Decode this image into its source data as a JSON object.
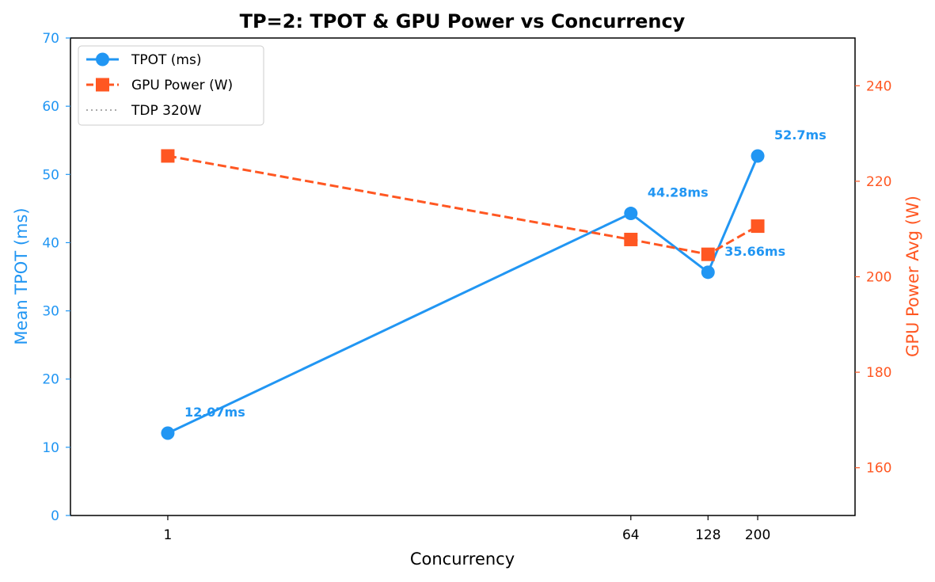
{
  "colors": {
    "tpot": "#2196f3",
    "power": "#ff5722",
    "tdp": "#aaaaaa",
    "axis": "#000000"
  },
  "chart_data": {
    "type": "line",
    "title": "TP=2: TPOT & GPU Power vs Concurrency",
    "xlabel": "Concurrency",
    "x_scale": "log",
    "x": [
      1,
      64,
      128,
      200
    ],
    "x_tick_labels": [
      "1",
      "64",
      "128",
      "200"
    ],
    "y_left": {
      "label": "Mean TPOT (ms)",
      "range": [
        0,
        70
      ],
      "ticks": [
        0,
        10,
        20,
        30,
        40,
        50,
        60,
        70
      ],
      "tick_labels": [
        "0",
        "10",
        "20",
        "30",
        "40",
        "50",
        "60",
        "70"
      ]
    },
    "y_right": {
      "label": "GPU Power Avg (W)",
      "range": [
        150,
        250
      ],
      "ticks": [
        160,
        180,
        200,
        220,
        240
      ],
      "tick_labels": [
        "160",
        "180",
        "200",
        "220",
        "240"
      ]
    },
    "grid": false,
    "legend_position": "upper-left",
    "series": [
      {
        "name": "TPOT (ms)",
        "axis": "left",
        "marker": "circle",
        "line_style": "solid",
        "color": "#2196f3",
        "values": [
          12.07,
          44.28,
          35.66,
          52.7
        ],
        "data_labels": [
          "12.07ms",
          "44.28ms",
          "35.66ms",
          "52.7ms"
        ]
      },
      {
        "name": "GPU Power (W)",
        "axis": "right",
        "marker": "square",
        "line_style": "dashed",
        "color": "#ff5722",
        "values": [
          225.3,
          207.8,
          204.7,
          210.6
        ]
      },
      {
        "name": "TDP 320W",
        "axis": "right",
        "marker": "none",
        "line_style": "dotted",
        "color": "#aaaaaa",
        "values": [
          320,
          320,
          320,
          320
        ]
      }
    ]
  }
}
